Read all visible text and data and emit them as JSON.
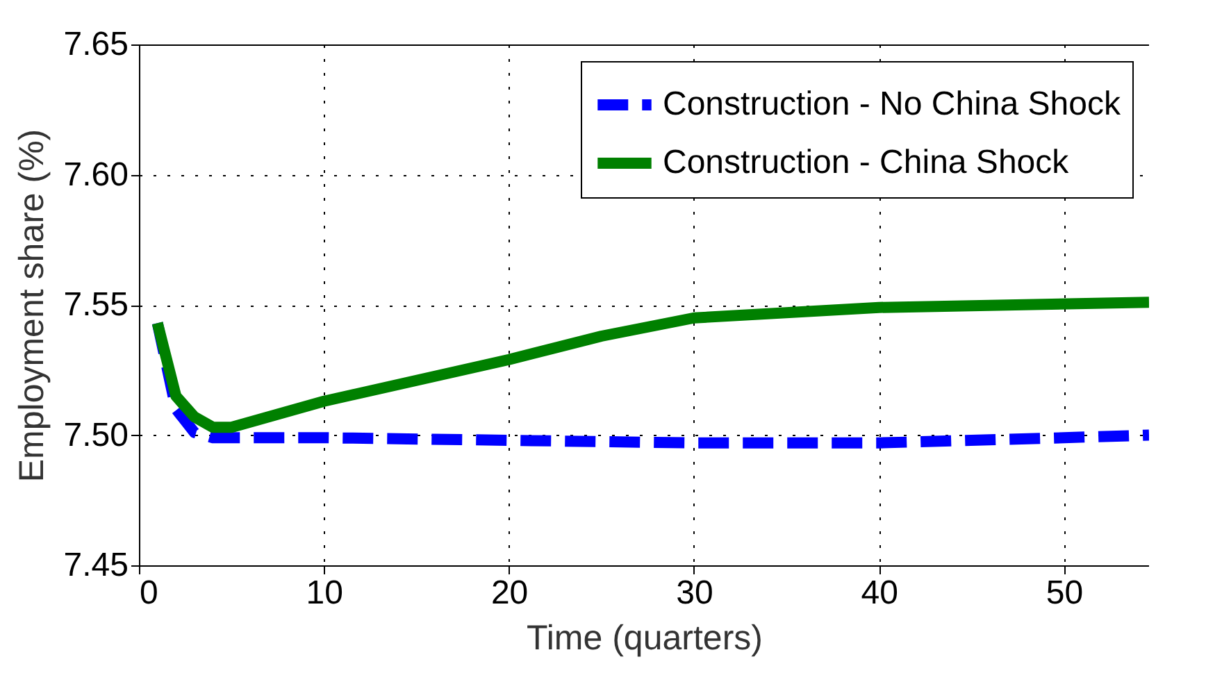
{
  "chart_data": {
    "type": "line",
    "xlabel": "Time (quarters)",
    "ylabel": "Employment share (%)",
    "xlim": [
      0,
      54.6
    ],
    "ylim": [
      7.45,
      7.65
    ],
    "xticks": [
      0,
      10,
      20,
      30,
      40,
      50
    ],
    "yticks": [
      7.45,
      {
        "value": 7.5,
        "label": "7.50"
      },
      7.55,
      {
        "value": 7.6,
        "label": "7.60"
      },
      7.65
    ],
    "grid": true,
    "legend": "top right",
    "series": [
      {
        "name": "Construction - No China Shock",
        "color": "#0000ff",
        "line_style": "dashed",
        "x": [
          1,
          2,
          3,
          4,
          5,
          10,
          20,
          30,
          40,
          50,
          54.6
        ],
        "values": [
          7.543,
          7.51,
          7.501,
          7.499,
          7.499,
          7.499,
          7.498,
          7.497,
          7.497,
          7.499,
          7.5
        ]
      },
      {
        "name": "Construction  - China Shock",
        "color": "#008000",
        "line_style": "solid",
        "x": [
          1,
          2,
          3,
          4,
          5,
          10,
          20,
          25,
          30,
          40,
          54.6
        ],
        "values": [
          7.543,
          7.515,
          7.507,
          7.503,
          7.503,
          7.513,
          7.529,
          7.538,
          7.545,
          7.549,
          7.551
        ]
      }
    ]
  }
}
